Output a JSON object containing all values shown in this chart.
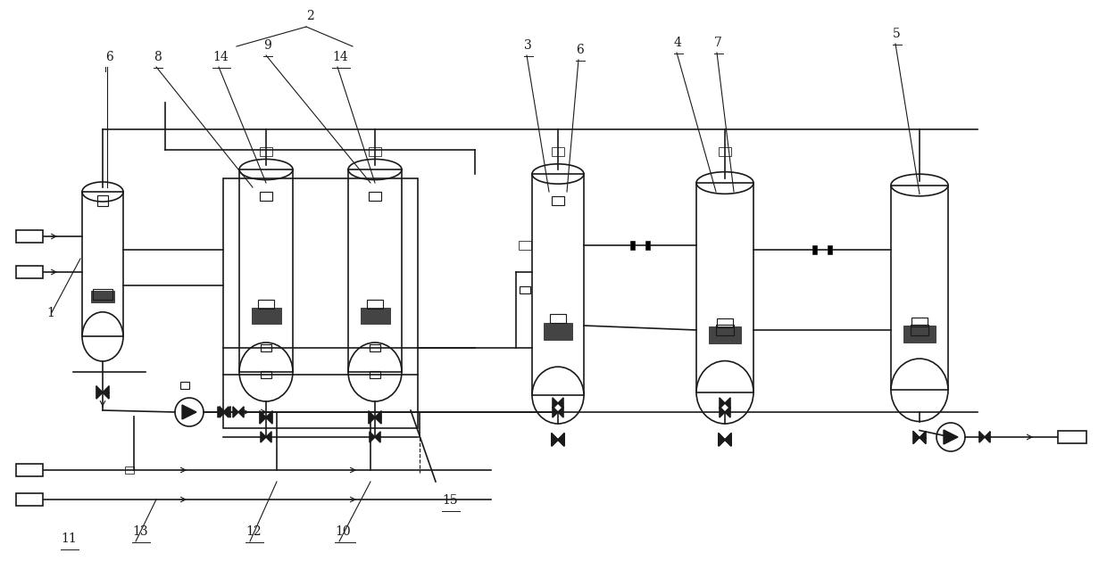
{
  "bg_color": "#ffffff",
  "lc": "#1a1a1a",
  "lw": 1.2,
  "tlw": 0.8,
  "figw": 12.4,
  "figh": 6.48,
  "dpi": 100,
  "xmax": 1240,
  "ymax": 648
}
